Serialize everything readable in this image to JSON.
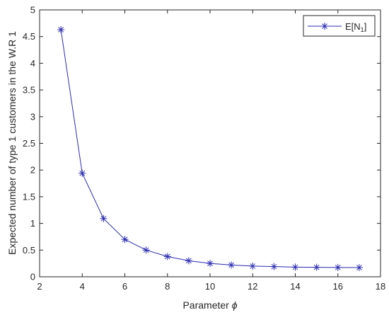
{
  "chart_data": {
    "type": "line",
    "xlabel_text": "Parameter ",
    "xlabel_symbol": "ϕ",
    "ylabel": "Expected number of  type 1 customers in the W.R 1",
    "xlim": [
      2,
      18
    ],
    "ylim": [
      0,
      5
    ],
    "xticks": [
      "2",
      "4",
      "6",
      "8",
      "10",
      "12",
      "14",
      "16",
      "18"
    ],
    "yticks": [
      "0",
      "0.5",
      "1",
      "1.5",
      "2",
      "2.5",
      "3",
      "3.5",
      "4",
      "4.5",
      "5"
    ],
    "grid": false,
    "legend_placement": "top-right",
    "series": [
      {
        "name_main": "E[N",
        "name_sub": "1",
        "name_close": "]",
        "color": "#2b2bb3",
        "marker": "asterisk",
        "x": [
          3,
          4,
          5,
          6,
          7,
          8,
          9,
          10,
          11,
          12,
          13,
          14,
          15,
          16,
          17
        ],
        "y": [
          4.63,
          1.94,
          1.09,
          0.7,
          0.5,
          0.38,
          0.3,
          0.25,
          0.22,
          0.2,
          0.19,
          0.18,
          0.177,
          0.174,
          0.172
        ]
      }
    ]
  }
}
